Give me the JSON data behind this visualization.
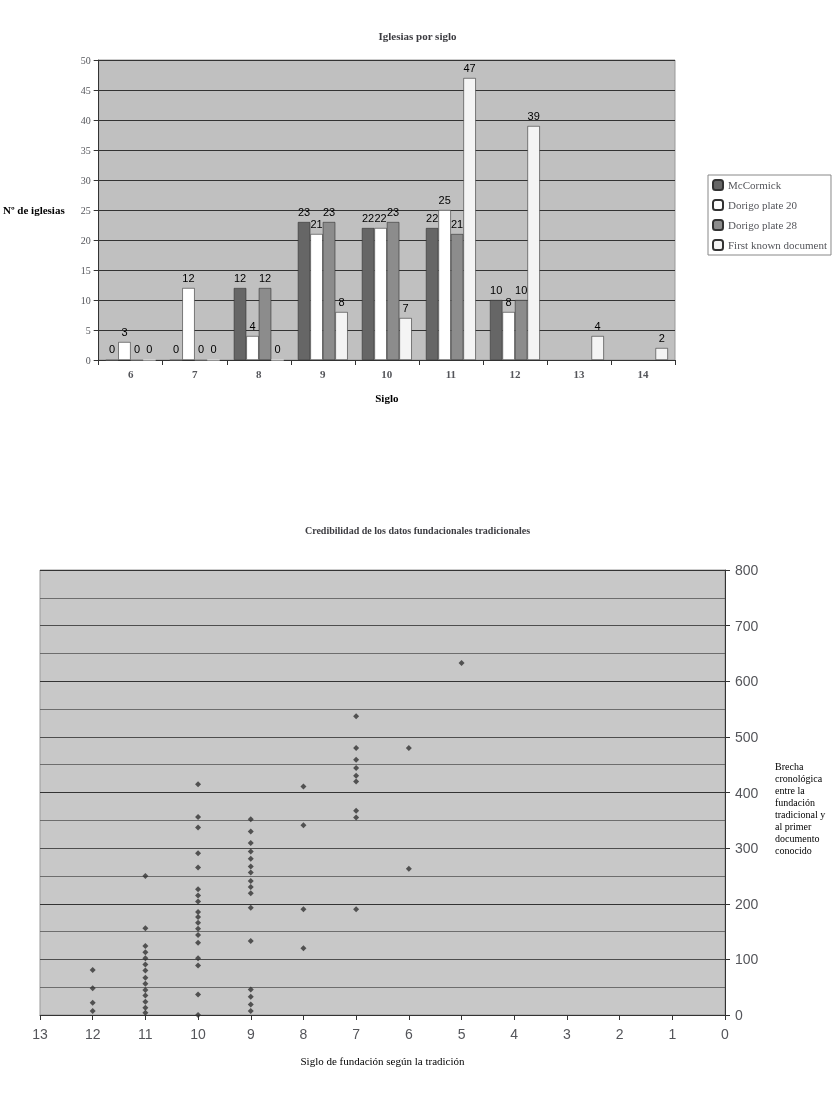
{
  "chart_data": [
    {
      "type": "bar",
      "title": "Iglesias por siglo",
      "xlabel": "Siglo",
      "ylabel": "Nº de iglesias",
      "categories": [
        "6",
        "7",
        "8",
        "9",
        "10",
        "11",
        "12",
        "13",
        "14"
      ],
      "series": [
        {
          "name": "McCormick",
          "color": "#666666",
          "values": [
            0,
            0,
            12,
            23,
            22,
            22,
            10,
            null,
            null
          ]
        },
        {
          "name": "Dorigo plate 20",
          "color": "#ffffff",
          "values": [
            3,
            12,
            4,
            21,
            22,
            25,
            8,
            null,
            null
          ]
        },
        {
          "name": "Dorigo plate 28",
          "color": "#8c8c8c",
          "values": [
            0,
            0,
            12,
            23,
            23,
            21,
            10,
            null,
            null
          ]
        },
        {
          "name": "First known document",
          "color": "#f4f4f4",
          "values": [
            0,
            0,
            0,
            8,
            7,
            47,
            39,
            4,
            2
          ]
        }
      ],
      "ylim": [
        0,
        50
      ],
      "yticks": [
        0,
        5,
        10,
        15,
        20,
        25,
        30,
        35,
        40,
        45,
        50
      ],
      "grid": "y",
      "legend": "right",
      "data_labels": true
    },
    {
      "type": "scatter",
      "title": "Credibilidad de los datos fundacionales tradicionales",
      "xlabel": "Siglo de fundación según la tradición",
      "ylabel": "Brecha cronológica entre la fundación tradicional y al primer documento conocido",
      "x": [
        5,
        6,
        6,
        7,
        7,
        7,
        7,
        7,
        7,
        7,
        7,
        7,
        8,
        8,
        8,
        8,
        9,
        9,
        9,
        9,
        9,
        9,
        9,
        9,
        9,
        9,
        9,
        9,
        9,
        9,
        9,
        9,
        10,
        10,
        10,
        10,
        10,
        10,
        10,
        10,
        10,
        10,
        10,
        10,
        10,
        10,
        10,
        10,
        10,
        10,
        11,
        11,
        11,
        11,
        11,
        11,
        11,
        11,
        11,
        11,
        11,
        11,
        11,
        11,
        12,
        12,
        12,
        12
      ],
      "values": [
        633,
        480,
        263,
        537,
        480,
        459,
        444,
        430,
        420,
        367,
        355,
        190,
        411,
        341,
        190,
        120,
        352,
        330,
        309,
        294,
        281,
        267,
        256,
        241,
        230,
        219,
        193,
        133,
        46,
        33,
        19,
        7,
        415,
        356,
        337,
        291,
        265,
        185,
        176,
        166,
        155,
        144,
        130,
        102,
        89,
        37,
        0,
        226,
        215,
        204,
        250,
        156,
        124,
        113,
        102,
        91,
        80,
        67,
        56,
        45,
        35,
        24,
        13,
        4,
        81,
        48,
        22,
        7
      ],
      "color": "#333333",
      "marker": "diamond",
      "xlim": [
        13,
        0
      ],
      "xticks": [
        13,
        12,
        11,
        10,
        9,
        8,
        7,
        6,
        5,
        4,
        3,
        2,
        1,
        0
      ],
      "ylim": [
        0,
        800
      ],
      "yticks": [
        0,
        100,
        200,
        300,
        400,
        500,
        600,
        700,
        800
      ],
      "grid": "y"
    }
  ]
}
